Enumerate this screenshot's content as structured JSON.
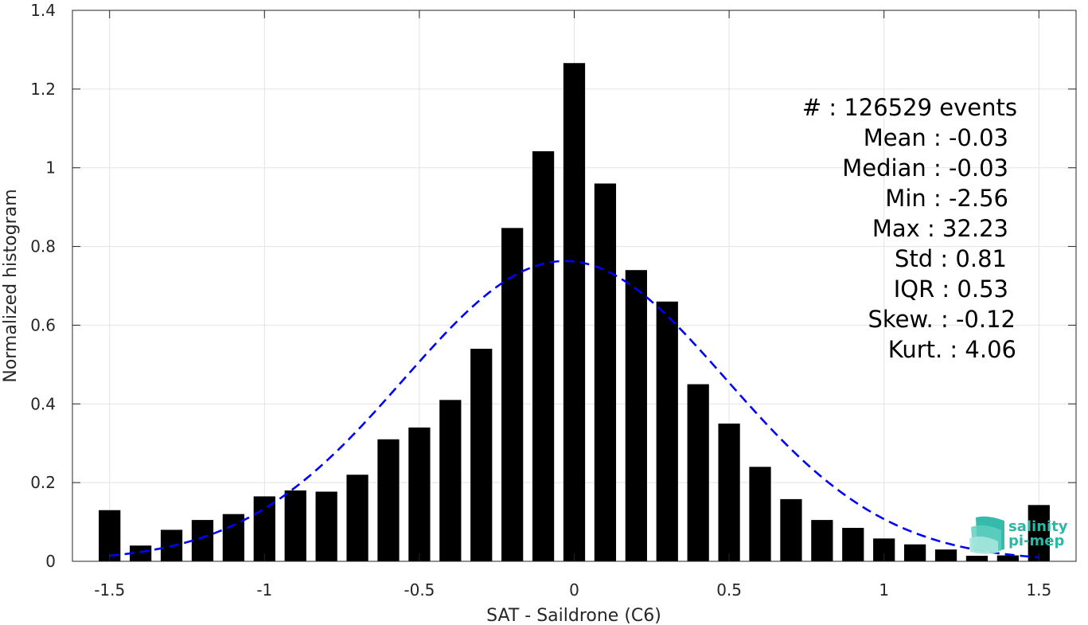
{
  "chart_data": {
    "type": "bar",
    "xlabel": "SAT - Saildrone (C6)",
    "ylabel": "Normalized histogram",
    "xlim": [
      -1.62,
      1.62
    ],
    "ylim": [
      0,
      1.4
    ],
    "xticks": [
      -1.5,
      -1,
      -0.5,
      0,
      0.5,
      1,
      1.5
    ],
    "xtick_labels": [
      "-1.5",
      "-1",
      "-0.5",
      "0",
      "0.5",
      "1",
      "1.5"
    ],
    "yticks": [
      0,
      0.2,
      0.4,
      0.6,
      0.8,
      1,
      1.2,
      1.4
    ],
    "ytick_labels": [
      "0",
      "0.2",
      "0.4",
      "0.6",
      "0.8",
      "1",
      "1.2",
      "1.4"
    ],
    "grid": true,
    "bar_width": 0.07,
    "x": [
      -1.5,
      -1.4,
      -1.3,
      -1.2,
      -1.1,
      -1.0,
      -0.9,
      -0.8,
      -0.7,
      -0.6,
      -0.5,
      -0.4,
      -0.3,
      -0.2,
      -0.1,
      0.0,
      0.1,
      0.2,
      0.3,
      0.4,
      0.5,
      0.6,
      0.7,
      0.8,
      0.9,
      1.0,
      1.1,
      1.2,
      1.3,
      1.4,
      1.5
    ],
    "values": [
      0.13,
      0.04,
      0.08,
      0.105,
      0.12,
      0.165,
      0.18,
      0.177,
      0.22,
      0.31,
      0.34,
      0.41,
      0.54,
      0.847,
      1.042,
      1.266,
      0.96,
      0.74,
      0.66,
      0.45,
      0.35,
      0.24,
      0.158,
      0.105,
      0.085,
      0.058,
      0.043,
      0.03,
      0.014,
      0.015,
      0.143
    ],
    "bar_color": "#000000",
    "fit_curve": {
      "style": "dashed",
      "color": "#0000ff",
      "mean": -0.03,
      "std": 0.52,
      "peak": 0.763,
      "x_range": [
        -1.5,
        1.5
      ]
    }
  },
  "stats": {
    "lines": [
      "#  : 126529 events",
      "Mean : -0.03",
      "Median : -0.03",
      "Min : -2.56",
      "Max : 32.23",
      "Std : 0.81",
      "IQR : 0.53",
      "Skew. : -0.12",
      "Kurt. : 4.06"
    ]
  },
  "logo": {
    "line1": "salinity",
    "line2": "pi-mep",
    "color": "#2bb7a6"
  }
}
